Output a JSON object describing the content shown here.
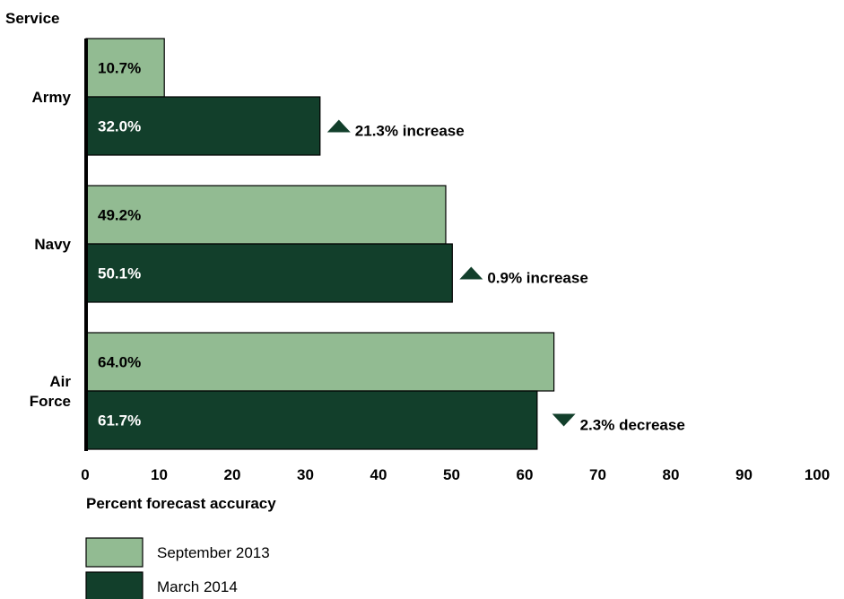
{
  "chart_data": {
    "type": "bar",
    "orientation": "horizontal",
    "y_axis_title": "Service",
    "xlabel": "Percent forecast accuracy",
    "xlim": [
      0,
      100
    ],
    "x_ticks": [
      "0",
      "10",
      "20",
      "30",
      "40",
      "50",
      "60",
      "70",
      "80",
      "90",
      "100"
    ],
    "categories": [
      {
        "lines": [
          "Army"
        ]
      },
      {
        "lines": [
          "Navy"
        ]
      },
      {
        "lines": [
          "Air",
          "Force"
        ]
      }
    ],
    "series": [
      {
        "name": "September 2013",
        "color": "#92bb92",
        "values": [
          10.7,
          49.2,
          64.0
        ],
        "labels": [
          "10.7%",
          "49.2%",
          "64.0%"
        ]
      },
      {
        "name": "March 2014",
        "color": "#123f2b",
        "values": [
          32.0,
          50.1,
          61.7
        ],
        "labels": [
          "32.0%",
          "50.1%",
          "61.7%"
        ]
      }
    ],
    "changes": [
      {
        "direction": "up",
        "text": "21.3% increase"
      },
      {
        "direction": "up",
        "text": "0.9% increase"
      },
      {
        "direction": "down",
        "text": "2.3% decrease"
      }
    ],
    "grid": false,
    "legend_position": "bottom-left"
  }
}
